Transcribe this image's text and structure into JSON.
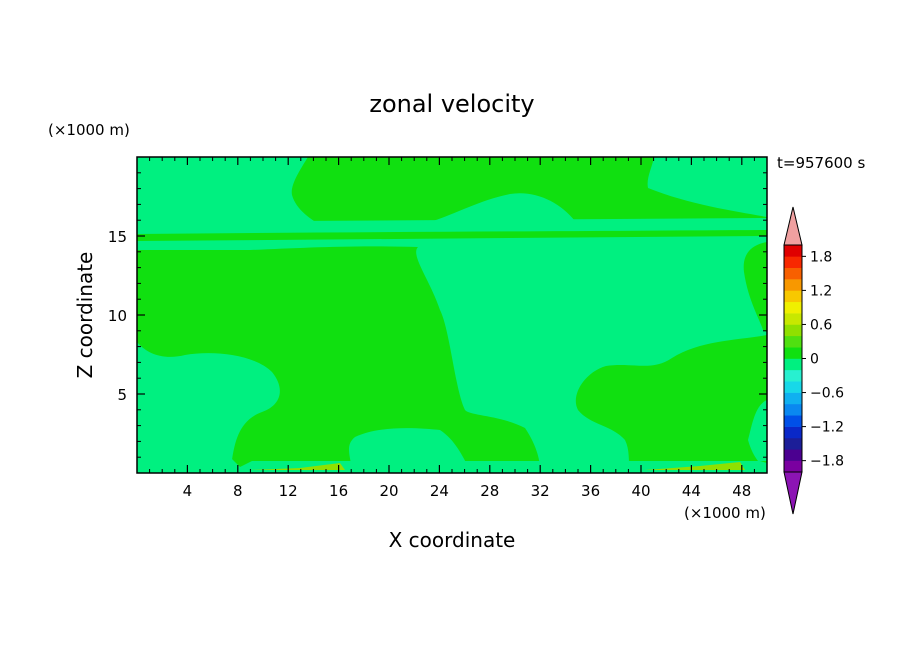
{
  "chart_data": {
    "type": "heatmap",
    "title": "zonal velocity",
    "xlabel": "X coordinate",
    "ylabel": "Z coordinate",
    "x_unit": "(×1000 m)",
    "y_unit": "(×1000 m)",
    "time_label": "t=957600 s",
    "xlim": [
      0,
      50
    ],
    "ylim": [
      0,
      20
    ],
    "x_ticks": [
      4,
      8,
      12,
      16,
      20,
      24,
      28,
      32,
      36,
      40,
      44,
      48
    ],
    "y_ticks": [
      5,
      10,
      15
    ],
    "colorbar": {
      "min": -2.0,
      "max": 2.0,
      "step": 0.2,
      "tick_values": [
        1.8,
        1.2,
        0.6,
        0,
        -0.6,
        -1.2,
        -1.8
      ],
      "tick_labels": [
        "1.8",
        "1.2",
        "0.6",
        "0",
        "−0.6",
        "−1.2",
        "−1.8"
      ],
      "colors": [
        "#7a00a0",
        "#4b0090",
        "#1c1e98",
        "#0a28c8",
        "#0050e8",
        "#0a88f0",
        "#10b0f0",
        "#18d8e8",
        "#28f0d0",
        "#00f080",
        "#10e010",
        "#50e010",
        "#90e000",
        "#c8e800",
        "#f0f000",
        "#f8c800",
        "#f89800",
        "#f86000",
        "#f82800",
        "#e00000"
      ],
      "over_color": "#f0a0a0",
      "under_color": "#8c14b4"
    },
    "regions": {
      "positive_color": "#00f080",
      "background_color": "#10e010",
      "positive_value": -0.2,
      "background_value": 0.1,
      "surface_positive_value": 0.5
    }
  }
}
